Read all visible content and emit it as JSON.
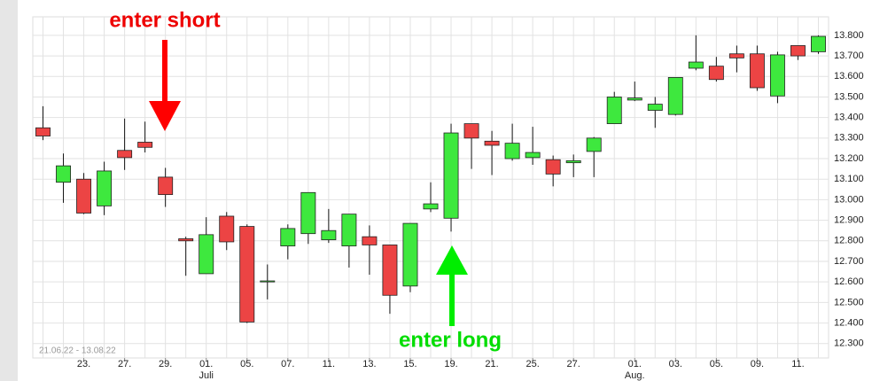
{
  "chart_data": {
    "type": "candlestick",
    "date_range": "21.06.22 - 13.08.22",
    "annotations": {
      "short": "enter short",
      "long": "enter long"
    },
    "categories": [
      null,
      null,
      "23.",
      null,
      "27.",
      null,
      "29.",
      null,
      "01.",
      null,
      "05.",
      null,
      "07.",
      null,
      "11.",
      null,
      "13.",
      null,
      "15.",
      null,
      "19.",
      null,
      "21.",
      null,
      "25.",
      null,
      "27.",
      null,
      null,
      "01.",
      null,
      "03.",
      null,
      "05.",
      null,
      "09.",
      null,
      "11.",
      null
    ],
    "month_labels": [
      null,
      null,
      null,
      null,
      null,
      null,
      null,
      null,
      "Juli",
      null,
      null,
      null,
      null,
      null,
      null,
      null,
      null,
      null,
      null,
      null,
      null,
      null,
      null,
      null,
      null,
      null,
      null,
      null,
      null,
      "Aug.",
      null,
      null,
      null,
      null,
      null,
      null,
      null,
      null,
      null
    ],
    "open": [
      13350,
      13085,
      13100,
      12970,
      13240,
      13280,
      13110,
      12810,
      12640,
      12920,
      12870,
      12600,
      12775,
      12835,
      12805,
      12775,
      12820,
      12780,
      12580,
      12955,
      12910,
      13370,
      13285,
      13200,
      13205,
      13195,
      13180,
      13235,
      13370,
      13485,
      13435,
      13415,
      13640,
      13650,
      13710,
      13710,
      13505,
      13750,
      13720
    ],
    "high": [
      13455,
      13225,
      13130,
      13185,
      13395,
      13380,
      13155,
      12820,
      12915,
      12940,
      12880,
      12685,
      12880,
      13035,
      12955,
      12930,
      12875,
      12780,
      12885,
      13085,
      13370,
      13370,
      13335,
      13370,
      13355,
      13215,
      13220,
      13305,
      13525,
      13575,
      13500,
      13595,
      13800,
      13695,
      13750,
      13750,
      13720,
      13750,
      13800
    ],
    "low": [
      13290,
      12985,
      12930,
      12925,
      13145,
      13230,
      12965,
      12630,
      12640,
      12755,
      12400,
      12515,
      12710,
      12785,
      12790,
      12670,
      12635,
      12445,
      12550,
      12940,
      12845,
      13150,
      13120,
      13190,
      13170,
      13065,
      13110,
      13110,
      13370,
      13480,
      13350,
      13410,
      13630,
      13575,
      13620,
      13530,
      13470,
      13680,
      13710
    ],
    "close": [
      13310,
      13165,
      12935,
      13140,
      13205,
      13255,
      13025,
      12800,
      12830,
      12795,
      12405,
      12605,
      12860,
      13035,
      12850,
      12930,
      12780,
      12535,
      12885,
      12980,
      13325,
      13300,
      13265,
      13275,
      13230,
      13125,
      13190,
      13300,
      13500,
      13495,
      13465,
      13595,
      13670,
      13585,
      13690,
      13545,
      13705,
      13700,
      13795
    ],
    "up_color": "#3ee83e",
    "down_color": "#ec4444",
    "ylim": [
      12230,
      13890
    ],
    "yticks": [
      {
        "value": 12300,
        "label": "12.300"
      },
      {
        "value": 12400,
        "label": "12.400"
      },
      {
        "value": 12500,
        "label": "12.500"
      },
      {
        "value": 12600,
        "label": "12.600"
      },
      {
        "value": 12700,
        "label": "12.700"
      },
      {
        "value": 12800,
        "label": "12.800"
      },
      {
        "value": 12900,
        "label": "12.900"
      },
      {
        "value": 13000,
        "label": "13.000"
      },
      {
        "value": 13100,
        "label": "13.100"
      },
      {
        "value": 13200,
        "label": "13.200"
      },
      {
        "value": 13300,
        "label": "13.300"
      },
      {
        "value": 13400,
        "label": "13.400"
      },
      {
        "value": 13500,
        "label": "13.500"
      },
      {
        "value": 13600,
        "label": "13.600"
      },
      {
        "value": 13700,
        "label": "13.700"
      },
      {
        "value": 13800,
        "label": "13.800"
      }
    ],
    "grid": true
  }
}
